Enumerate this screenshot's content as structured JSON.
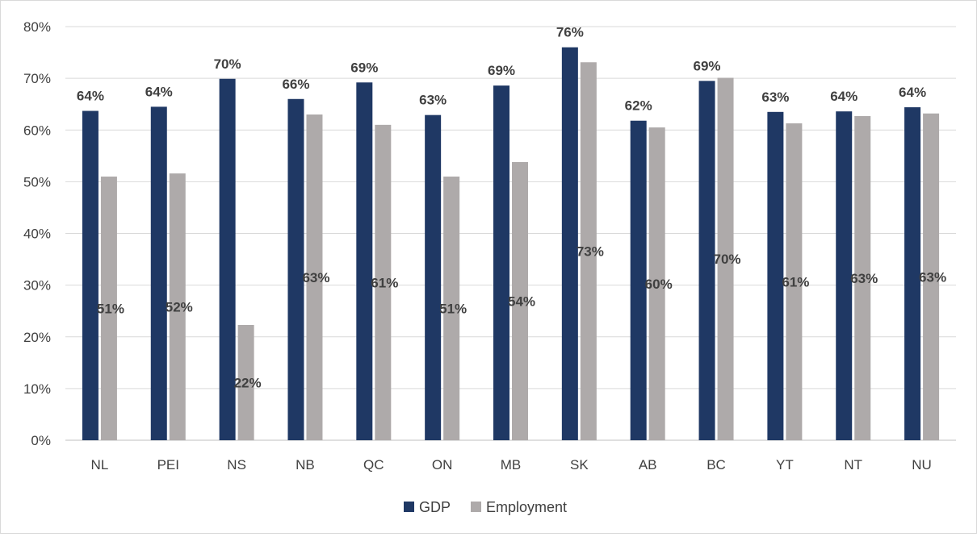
{
  "chart_data": {
    "type": "bar",
    "categories": [
      "NL",
      "PEI",
      "NS",
      "NB",
      "QC",
      "ON",
      "MB",
      "SK",
      "AB",
      "BC",
      "YT",
      "NT",
      "NU"
    ],
    "series": [
      {
        "name": "GDP",
        "color": "#1f3864",
        "values": [
          63.7,
          64.5,
          69.9,
          66.0,
          69.2,
          62.9,
          68.6,
          76.0,
          61.8,
          69.5,
          63.5,
          63.6,
          64.4
        ],
        "labels": [
          "64%",
          "64%",
          "70%",
          "66%",
          "69%",
          "63%",
          "69%",
          "76%",
          "62%",
          "69%",
          "63%",
          "64%",
          "64%"
        ]
      },
      {
        "name": "Employment",
        "color": "#aeaaaa",
        "values": [
          51.0,
          51.6,
          22.3,
          63.0,
          61.0,
          51.0,
          53.8,
          73.1,
          60.5,
          70.1,
          61.3,
          62.7,
          63.2
        ],
        "labels": [
          "51%",
          "52%",
          "22%",
          "63%",
          "61%",
          "51%",
          "54%",
          "73%",
          "60%",
          "70%",
          "61%",
          "63%",
          "63%"
        ]
      }
    ],
    "yaxis": {
      "ticks": [
        "0%",
        "10%",
        "20%",
        "30%",
        "40%",
        "50%",
        "60%",
        "70%",
        "80%"
      ],
      "ylim": [
        0,
        80
      ]
    },
    "gridlines": true,
    "legend_position": "bottom-center"
  }
}
